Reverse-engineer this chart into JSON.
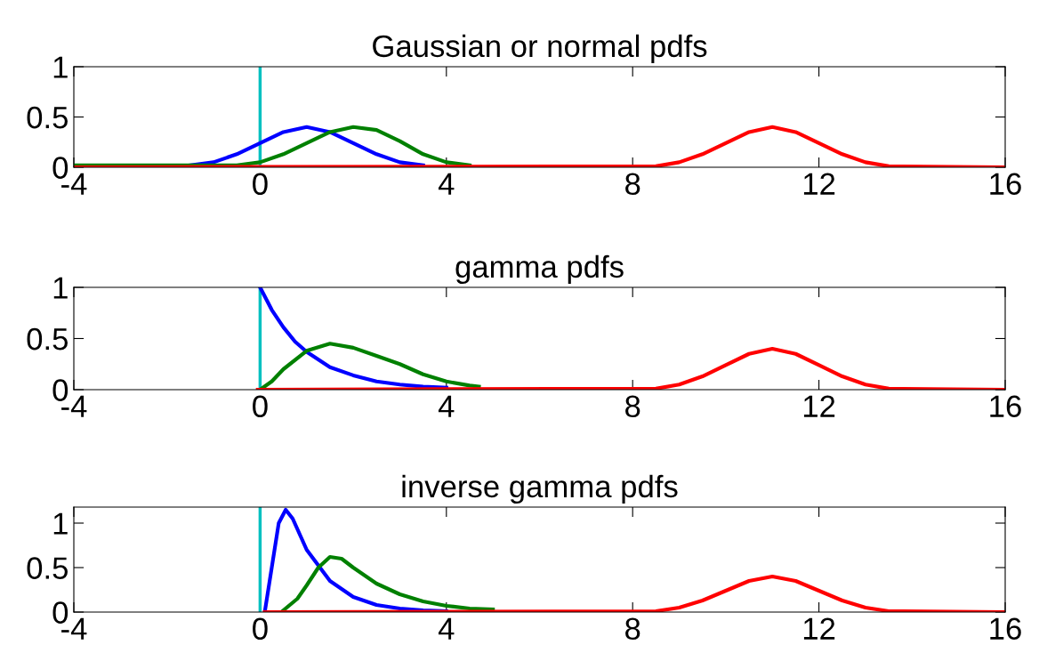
{
  "chart_data": [
    {
      "type": "line",
      "title": "Gaussian or normal pdfs",
      "xlim": [
        -4,
        16
      ],
      "xticks": [
        -4,
        0,
        4,
        8,
        12,
        16
      ],
      "ylim": [
        0,
        1
      ],
      "yticks": [
        0,
        0.5,
        1
      ],
      "grid": false,
      "ref_lines": [
        {
          "axis": "x",
          "value": 0,
          "color": "#00c0c0"
        }
      ],
      "series": [
        {
          "color": "#0000ff",
          "x": [
            -1.5,
            -1,
            -0.5,
            0,
            0.5,
            1,
            1.5,
            2,
            2.5,
            3,
            3.5
          ],
          "values": [
            0.02,
            0.05,
            0.13,
            0.24,
            0.35,
            0.4,
            0.35,
            0.24,
            0.13,
            0.05,
            0.02
          ]
        },
        {
          "color": "#008000",
          "x": [
            -4,
            -0.5,
            0,
            0.5,
            1,
            1.5,
            2,
            2.5,
            3,
            3.5,
            4,
            4.5
          ],
          "values": [
            0.02,
            0.02,
            0.05,
            0.13,
            0.24,
            0.35,
            0.4,
            0.37,
            0.26,
            0.13,
            0.05,
            0.02
          ]
        },
        {
          "color": "#ff0000",
          "x": [
            -4,
            8.5,
            9,
            9.5,
            10,
            10.5,
            11,
            11.5,
            12,
            12.5,
            13,
            13.5,
            16
          ],
          "values": [
            0,
            0.01,
            0.05,
            0.13,
            0.24,
            0.35,
            0.4,
            0.35,
            0.24,
            0.13,
            0.05,
            0.01,
            0
          ]
        }
      ]
    },
    {
      "type": "line",
      "title": "gamma pdfs",
      "xlim": [
        -4,
        16
      ],
      "xticks": [
        -4,
        0,
        4,
        8,
        12,
        16
      ],
      "ylim": [
        0,
        1
      ],
      "yticks": [
        0,
        0.5,
        1
      ],
      "grid": false,
      "ref_lines": [
        {
          "axis": "x",
          "value": 0,
          "color": "#00c0c0"
        }
      ],
      "series": [
        {
          "color": "#0000ff",
          "x": [
            0,
            0.25,
            0.5,
            0.75,
            1,
            1.5,
            2,
            2.5,
            3,
            3.5,
            4
          ],
          "values": [
            1,
            0.78,
            0.61,
            0.47,
            0.37,
            0.22,
            0.14,
            0.08,
            0.05,
            0.03,
            0.02
          ]
        },
        {
          "color": "#008000",
          "x": [
            0,
            0.25,
            0.5,
            1,
            1.5,
            2,
            2.5,
            3,
            3.5,
            4,
            4.5,
            4.7
          ],
          "values": [
            0,
            0.08,
            0.2,
            0.38,
            0.45,
            0.41,
            0.33,
            0.25,
            0.15,
            0.08,
            0.04,
            0.03
          ]
        },
        {
          "color": "#ff0000",
          "x": [
            -0.05,
            8.5,
            9,
            9.5,
            10,
            10.5,
            11,
            11.5,
            12,
            12.5,
            13,
            13.5,
            16
          ],
          "values": [
            0,
            0.01,
            0.05,
            0.13,
            0.24,
            0.35,
            0.4,
            0.35,
            0.24,
            0.13,
            0.05,
            0.01,
            0
          ]
        }
      ]
    },
    {
      "type": "line",
      "title": "inverse gamma pdfs",
      "xlim": [
        -4,
        16
      ],
      "xticks": [
        -4,
        0,
        4,
        8,
        12,
        16
      ],
      "ylim": [
        0,
        1.18
      ],
      "yticks": [
        0,
        0.5,
        1
      ],
      "grid": false,
      "ref_lines": [
        {
          "axis": "x",
          "value": 0,
          "color": "#00c0c0"
        }
      ],
      "series": [
        {
          "color": "#0000ff",
          "x": [
            0.1,
            0.25,
            0.4,
            0.55,
            0.7,
            1,
            1.5,
            2,
            2.5,
            3,
            3.5,
            4
          ],
          "values": [
            0,
            0.5,
            1.0,
            1.15,
            1.05,
            0.7,
            0.35,
            0.17,
            0.08,
            0.04,
            0.02,
            0.01
          ]
        },
        {
          "color": "#008000",
          "x": [
            0.5,
            0.8,
            1,
            1.25,
            1.5,
            1.75,
            2,
            2.5,
            3,
            3.5,
            4,
            4.5,
            5
          ],
          "values": [
            0.02,
            0.15,
            0.3,
            0.5,
            0.62,
            0.6,
            0.5,
            0.32,
            0.2,
            0.12,
            0.07,
            0.04,
            0.03
          ]
        },
        {
          "color": "#ff0000",
          "x": [
            0.1,
            8.5,
            9,
            9.5,
            10,
            10.5,
            11,
            11.5,
            12,
            12.5,
            13,
            13.5,
            16
          ],
          "values": [
            0,
            0.01,
            0.05,
            0.13,
            0.24,
            0.35,
            0.4,
            0.35,
            0.24,
            0.13,
            0.05,
            0.01,
            0
          ]
        }
      ]
    }
  ]
}
